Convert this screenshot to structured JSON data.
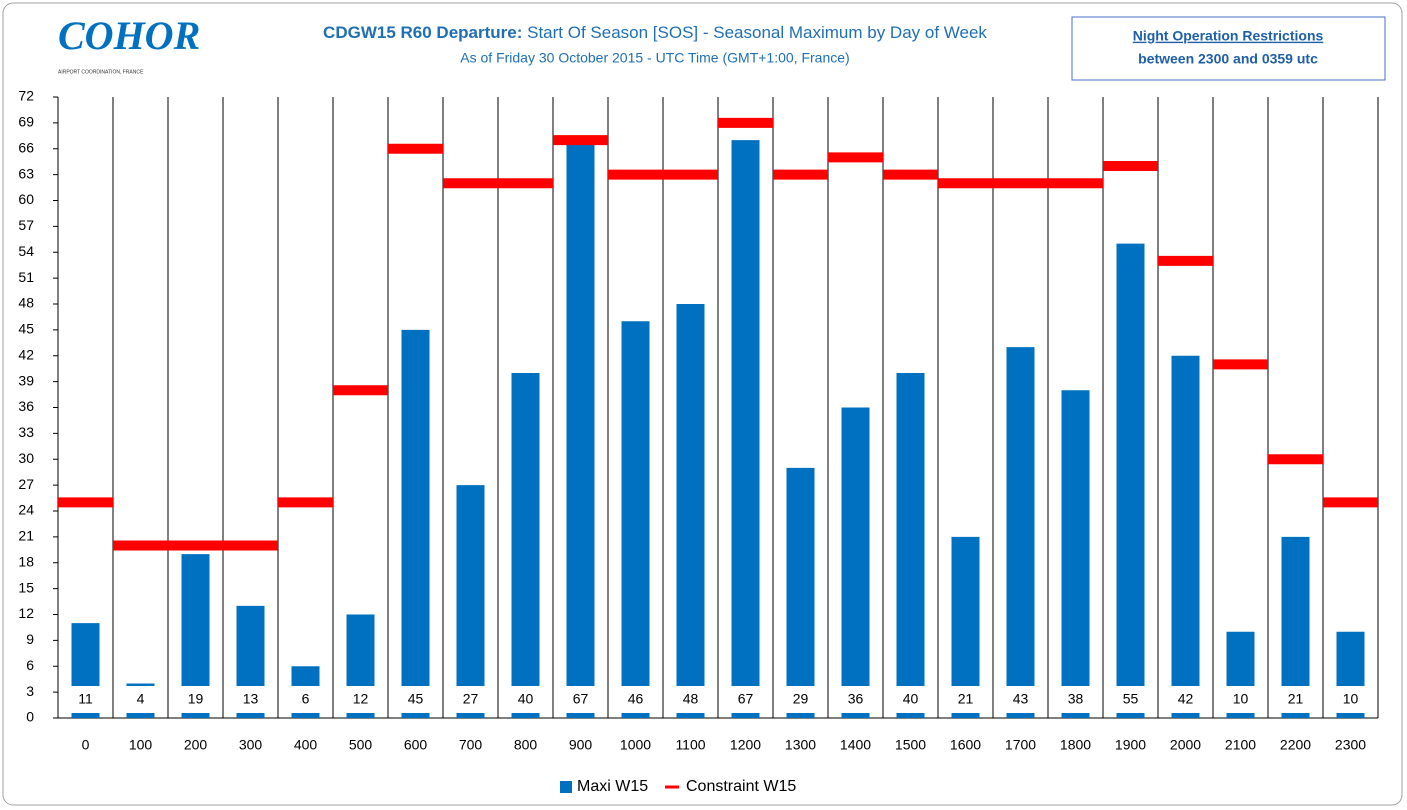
{
  "logo": {
    "name": "COHOR",
    "tagline": "AIRPORT COORDINATION, FRANCE"
  },
  "chart_data": {
    "type": "bar",
    "title": [
      "CDGW15 R60 Departure:",
      "Start Of Season [SOS]  - Seasonal Maximum  by Day of Week"
    ],
    "subtitle": "As of Friday 30 October 2015 - UTC Time (GMT+1:00,  France)",
    "annotations": [
      "Night Operation Restrictions",
      "between 2300 and 0359 utc"
    ],
    "categories": [
      "0",
      "100",
      "200",
      "300",
      "400",
      "500",
      "600",
      "700",
      "800",
      "900",
      "1000",
      "1100",
      "1200",
      "1300",
      "1400",
      "1500",
      "1600",
      "1700",
      "1800",
      "1900",
      "2000",
      "2100",
      "2200",
      "2300"
    ],
    "series": [
      {
        "name": "Maxi W15",
        "color": "#0070c0",
        "values": [
          11,
          4,
          19,
          13,
          6,
          12,
          45,
          27,
          40,
          67,
          46,
          48,
          67,
          29,
          36,
          40,
          21,
          43,
          38,
          55,
          42,
          10,
          21,
          10
        ]
      },
      {
        "name": "Constraint W15",
        "color": "#ff0000",
        "values": [
          25,
          20,
          20,
          20,
          25,
          38,
          66,
          62,
          62,
          67,
          63,
          63,
          69,
          63,
          65,
          63,
          62,
          62,
          62,
          64,
          53,
          41,
          30,
          25
        ]
      }
    ],
    "ylim": [
      0,
      72
    ],
    "yticks": [
      0,
      3,
      6,
      9,
      12,
      15,
      18,
      21,
      24,
      27,
      30,
      33,
      36,
      39,
      42,
      45,
      48,
      51,
      54,
      57,
      60,
      63,
      66,
      69,
      72
    ],
    "grid": true,
    "legend": "bottom"
  }
}
